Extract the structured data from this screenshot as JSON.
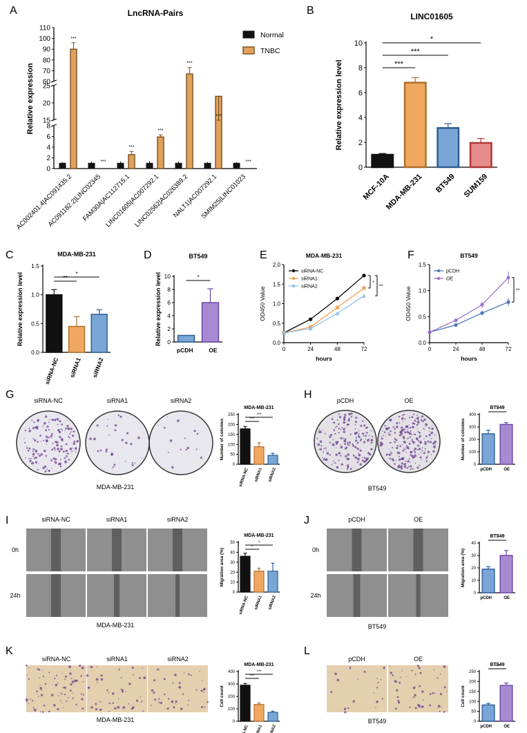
{
  "colors": {
    "black": "#111111",
    "tnbc_fill": "#e0a15c",
    "tnbc_edge": "#7a4a1c",
    "orange": "#f0a860",
    "orange_edge": "#b06e28",
    "blue": "#7aa6d6",
    "blue_edge": "#2c5d96",
    "red": "#e68c8c",
    "red_edge": "#b13636",
    "purple": "#a98ad2",
    "purple_edge": "#6a45a5",
    "dish": "#e9e7ee",
    "scratch_cell": "#8f8f8f",
    "scratch_gap": "#5f5f5f",
    "transwell": "#e4cfae",
    "stain": "#6b3d8e"
  },
  "panel_letters": [
    "A",
    "B",
    "C",
    "D",
    "E",
    "F",
    "G",
    "H",
    "I",
    "J",
    "K",
    "L"
  ],
  "chart_data": [
    {
      "id": "A",
      "type": "bar",
      "title": "LncRNA-Pairs",
      "ylabel": "Relative expression",
      "categories": [
        "AC002401.4|AC091435.2",
        "AC091182.2|LINC02345",
        "FAM30A|AC112715.1",
        "LINC01605|AC007292.1",
        "LINC02562|AC026389.2",
        "NALT1|AC007292.1",
        "SMIM25|LINC01023"
      ],
      "series": [
        {
          "name": "Normal",
          "values": [
            1,
            1,
            1,
            1,
            1,
            1,
            1
          ],
          "errors": [
            0.2,
            0.3,
            0.3,
            0.4,
            0.3,
            0.2,
            0.2
          ]
        },
        {
          "name": "TNBC",
          "values": [
            90,
            0.05,
            2.6,
            5.9,
            67,
            13.5,
            0.05
          ],
          "errors": [
            6,
            0,
            0.6,
            0.4,
            6,
            1.5,
            0
          ]
        }
      ],
      "sig": [
        "***",
        "***",
        "***",
        "***",
        "***",
        "***",
        "***"
      ],
      "yticks": [
        "0",
        "2",
        "4",
        "6",
        "8",
        "15",
        "20",
        "25",
        "60",
        "70",
        "80",
        "90",
        "100",
        "110"
      ],
      "ylim": [
        0,
        110
      ],
      "legend_position": "top-right"
    },
    {
      "id": "B",
      "type": "bar",
      "title": "LINC01605",
      "ylabel": "Relative expression level",
      "categories": [
        "MCF-10A",
        "MDA-MB-231",
        "BT549",
        "SUM159"
      ],
      "values": [
        1.0,
        6.8,
        3.15,
        1.95
      ],
      "errors": [
        0.1,
        0.4,
        0.35,
        0.35
      ],
      "ylim": [
        0,
        10
      ],
      "yticks": [
        "0",
        "2",
        "4",
        "6",
        "8",
        "10"
      ],
      "sig": [
        "*",
        "***",
        "***"
      ]
    },
    {
      "id": "C",
      "type": "bar",
      "title": "MDA-MB-231",
      "ylabel": "Relative expression level",
      "categories": [
        "siRNA-NC",
        "siRNA1",
        "siRNA2"
      ],
      "values": [
        1.0,
        0.45,
        0.66
      ],
      "errors": [
        0.09,
        0.17,
        0.08
      ],
      "ylim": [
        0,
        1.5
      ],
      "yticks": [
        "0.0",
        "0.5",
        "1.0",
        "1.5"
      ],
      "sig": [
        "*",
        "**"
      ]
    },
    {
      "id": "D",
      "type": "bar",
      "title": "BT549",
      "ylabel": "Relative expression level",
      "categories": [
        "pCDH",
        "OE"
      ],
      "values": [
        1.0,
        6.0
      ],
      "errors": [
        0,
        2.1
      ],
      "ylim": [
        0,
        10
      ],
      "yticks": [
        "0",
        "2",
        "4",
        "6",
        "8",
        "10"
      ],
      "sig": [
        "*"
      ]
    },
    {
      "id": "E",
      "type": "line",
      "title": "MDA-MB-231",
      "xlabel": "hours",
      "ylabel": "OD450 Value",
      "x": [
        0,
        24,
        48,
        72
      ],
      "xticks": [
        "0",
        "24",
        "48",
        "72"
      ],
      "yticks": [
        "0.0",
        "0.5",
        "1.0",
        "1.5",
        "2.0"
      ],
      "ylim": [
        0,
        2.0
      ],
      "series": [
        {
          "name": "siRNA-NC",
          "values": [
            0.25,
            0.6,
            1.13,
            1.72
          ]
        },
        {
          "name": "siRNA1",
          "values": [
            0.25,
            0.4,
            0.9,
            1.4
          ]
        },
        {
          "name": "siRNA2",
          "values": [
            0.25,
            0.36,
            0.75,
            1.2
          ]
        }
      ],
      "sig": [
        "*",
        "**"
      ]
    },
    {
      "id": "F",
      "type": "line",
      "title": "BT549",
      "xlabel": "hours",
      "ylabel": "OD450 Value",
      "x": [
        0,
        24,
        48,
        72
      ],
      "xticks": [
        "0",
        "24",
        "48",
        "72"
      ],
      "yticks": [
        "0.0",
        "0.5",
        "1.0",
        "1.5"
      ],
      "ylim": [
        0,
        1.5
      ],
      "series": [
        {
          "name": "pCDH",
          "values": [
            0.2,
            0.34,
            0.57,
            0.78
          ],
          "errors": [
            0.03,
            0.03,
            0.04,
            0.08
          ]
        },
        {
          "name": "OE",
          "values": [
            0.2,
            0.43,
            0.73,
            1.25
          ],
          "errors": [
            0.03,
            0.03,
            0.06,
            0.12
          ]
        }
      ],
      "sig": [
        "**"
      ]
    },
    {
      "id": "G",
      "type": "bar",
      "title": "MDA-MB-231",
      "ylabel": "Number of colonies",
      "categories": [
        "siRNA-NC",
        "siRNA1",
        "siRNA2"
      ],
      "values": [
        178,
        88,
        45
      ],
      "errors": [
        12,
        20,
        10
      ],
      "ylim": [
        0,
        250
      ],
      "yticks": [
        "0",
        "50",
        "100",
        "150",
        "200",
        "250"
      ],
      "sig": [
        "***",
        "***"
      ]
    },
    {
      "id": "H",
      "type": "bar",
      "title": "BT549",
      "ylabel": "Number of colonies",
      "categories": [
        "pCDH",
        "OE"
      ],
      "values": [
        245,
        320
      ],
      "errors": [
        28,
        15
      ],
      "ylim": [
        0,
        400
      ],
      "yticks": [
        "0",
        "100",
        "200",
        "300",
        "400"
      ],
      "sig": [
        "*"
      ]
    },
    {
      "id": "I",
      "type": "bar",
      "title": "MDA-MB-231",
      "ylabel": "Migration area (%)",
      "categories": [
        "siRNA-NC",
        "siRNA1",
        "siRNA2"
      ],
      "values": [
        36,
        21,
        21
      ],
      "errors": [
        3,
        3,
        8
      ],
      "ylim": [
        0,
        50
      ],
      "yticks": [
        "0",
        "10",
        "20",
        "30",
        "40",
        "50"
      ],
      "sig": [
        "*",
        "*"
      ]
    },
    {
      "id": "J",
      "type": "bar",
      "title": "BT549",
      "ylabel": "Migration area (%)",
      "categories": [
        "pCDH",
        "OE"
      ],
      "values": [
        19,
        30
      ],
      "errors": [
        2,
        4
      ],
      "ylim": [
        0,
        40
      ],
      "yticks": [
        "0",
        "10",
        "20",
        "30",
        "40"
      ],
      "sig": [
        "*"
      ]
    },
    {
      "id": "K",
      "type": "bar",
      "title": "MDA-MB-231",
      "ylabel": "Cell count",
      "categories": [
        "siRNA-NC",
        "siRNA1",
        "siRNA2"
      ],
      "values": [
        290,
        135,
        72
      ],
      "errors": [
        14,
        12,
        9
      ],
      "ylim": [
        0,
        400
      ],
      "yticks": [
        "0",
        "100",
        "200",
        "300",
        "400"
      ],
      "sig": [
        "***",
        "***"
      ]
    },
    {
      "id": "L",
      "type": "bar",
      "title": "BT549",
      "ylabel": "Cell count",
      "categories": [
        "pCDH",
        "OE"
      ],
      "values": [
        82,
        180
      ],
      "errors": [
        8,
        12
      ],
      "ylim": [
        0,
        250
      ],
      "yticks": [
        "0",
        "50",
        "100",
        "150",
        "200",
        "250"
      ],
      "sig": [
        "****"
      ]
    }
  ],
  "images": {
    "G": {
      "labels": [
        "siRNA-NC",
        "siRNA1",
        "siRNA2"
      ],
      "caption": "MDA-MB-231"
    },
    "H": {
      "labels": [
        "pCDH",
        "OE"
      ],
      "caption": "BT549"
    },
    "I": {
      "labels": [
        "siRNA-NC",
        "siRNA1",
        "siRNA2"
      ],
      "rows": [
        "0h",
        "24h"
      ],
      "caption": "MDA-MB-231"
    },
    "J": {
      "labels": [
        "pCDH",
        "OE"
      ],
      "rows": [
        "0h",
        "24h"
      ],
      "caption": "BT549"
    },
    "K": {
      "labels": [
        "siRNA-NC",
        "siRNA1",
        "siRNA2"
      ],
      "caption": "MDA-MB-231"
    },
    "L": {
      "labels": [
        "pCDH",
        "OE"
      ],
      "caption": "BT549"
    }
  }
}
